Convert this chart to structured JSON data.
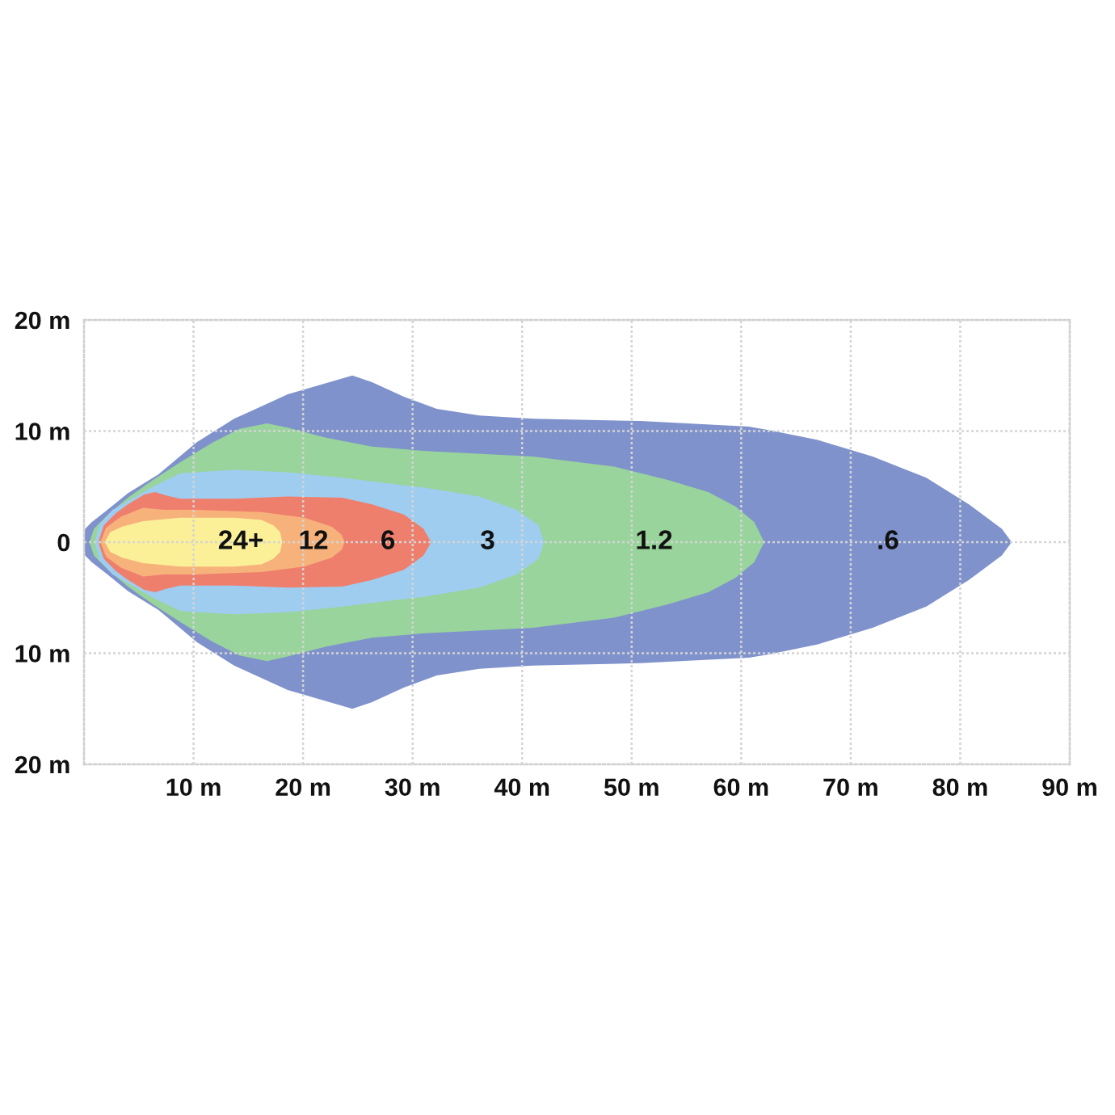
{
  "chart_data": {
    "type": "area",
    "xlim": [
      0,
      90
    ],
    "xticks": [
      {
        "value": 10,
        "label": "10 m"
      },
      {
        "value": 20,
        "label": "20 m"
      },
      {
        "value": 30,
        "label": "30 m"
      },
      {
        "value": 40,
        "label": "40 m"
      },
      {
        "value": 50,
        "label": "50 m"
      },
      {
        "value": 60,
        "label": "60 m"
      },
      {
        "value": 70,
        "label": "70 m"
      },
      {
        "value": 80,
        "label": "80 m"
      },
      {
        "value": 90,
        "label": "90 m"
      }
    ],
    "ylim": [
      -20,
      20
    ],
    "yticks": [
      {
        "value": 20,
        "label": "20 m"
      },
      {
        "value": 10,
        "label": "10 m"
      },
      0,
      {
        "value": -10,
        "label": "10 m"
      },
      {
        "value": -20,
        "label": "20 m"
      }
    ],
    "grid": true,
    "series": [
      {
        "name": ".6",
        "color": "#7f92cc",
        "x": [
          0,
          0.1,
          0.7,
          2.0,
          4.0,
          6.8,
          10.3,
          13.7,
          18.6,
          24.5,
          26.3,
          29.2,
          32.2,
          36.1,
          41,
          50.8,
          60.7,
          62.5,
          67,
          72,
          76.9,
          80.8,
          83.8,
          84.7
        ],
        "values": [
          0,
          1.2,
          1.8,
          2.8,
          4.4,
          6.1,
          9.0,
          11.1,
          13.3,
          15.0,
          14.4,
          13.1,
          12.0,
          11.4,
          11.1,
          10.9,
          10.4,
          10.1,
          9.2,
          7.7,
          5.8,
          3.4,
          1.2,
          0
        ]
      },
      {
        "color": "#7f92cc",
        "x": [
          0,
          0.1,
          0.7,
          2.0,
          4.0,
          6.8,
          10.3,
          13.7,
          18.6,
          24.5,
          26.3,
          29.2,
          32.2,
          36.1,
          41,
          50.8,
          60.7,
          62.5,
          67,
          72,
          76.9,
          80.8,
          83.8,
          84.7
        ],
        "values": [
          0,
          -1.2,
          -1.8,
          -2.8,
          -4.4,
          -6.1,
          -9.0,
          -11.1,
          -13.3,
          -15.0,
          -14.4,
          -13.1,
          -12.0,
          -11.4,
          -11.1,
          -10.9,
          -10.4,
          -10.1,
          -9.2,
          -7.7,
          -5.8,
          -3.4,
          -1.2,
          0
        ]
      },
      {
        "name": "1.2",
        "color": "#98d49b",
        "x": [
          0.5,
          0.9,
          2.0,
          4.0,
          6.3,
          8.8,
          11.8,
          14.2,
          16.7,
          18.6,
          22.1,
          26.3,
          31.2,
          41,
          48.4,
          53.3,
          57,
          59.5,
          61.2,
          62.1
        ],
        "values": [
          0,
          1.2,
          2.3,
          4.0,
          5.6,
          7.2,
          9.0,
          10.2,
          10.7,
          10.3,
          9.4,
          8.6,
          8.2,
          7.7,
          6.8,
          5.6,
          4.5,
          3.2,
          1.8,
          0
        ]
      },
      {
        "color": "#98d49b",
        "x": [
          0.5,
          0.9,
          2.0,
          4.0,
          6.3,
          8.8,
          11.8,
          14.2,
          16.7,
          18.6,
          22.1,
          26.3,
          31.2,
          41,
          48.4,
          53.3,
          57,
          59.5,
          61.2,
          62.1
        ],
        "values": [
          0,
          -1.2,
          -2.3,
          -4.0,
          -5.6,
          -7.2,
          -9.0,
          -10.2,
          -10.7,
          -10.3,
          -9.4,
          -8.6,
          -8.2,
          -7.7,
          -6.8,
          -5.6,
          -4.5,
          -3.2,
          -1.8,
          0
        ]
      },
      {
        "name": "3",
        "color": "#9fcdf0",
        "x": [
          1.0,
          1.4,
          2.6,
          4.0,
          6.3,
          8.8,
          13.7,
          18.6,
          23.6,
          28.5,
          31.2,
          36.1,
          39.5,
          41.5,
          42.0
        ],
        "values": [
          0,
          1.6,
          2.9,
          3.7,
          5.0,
          6.2,
          6.5,
          6.3,
          5.8,
          5.2,
          4.9,
          4.1,
          2.9,
          1.5,
          0
        ]
      },
      {
        "color": "#9fcdf0",
        "x": [
          1.0,
          1.4,
          2.6,
          4.0,
          6.3,
          8.8,
          13.7,
          18.6,
          23.6,
          28.5,
          31.2,
          36.1,
          39.5,
          41.5,
          42.0
        ],
        "values": [
          0,
          -1.6,
          -2.9,
          -3.7,
          -5.0,
          -6.2,
          -6.5,
          -6.3,
          -5.8,
          -5.2,
          -4.9,
          -4.1,
          -2.9,
          -1.5,
          0
        ]
      },
      {
        "name": "6",
        "color": "#ef7f6d",
        "x": [
          1.3,
          1.8,
          2.9,
          4.0,
          5.5,
          6.5,
          7.5,
          8.8,
          13.7,
          18.6,
          23.6,
          26.3,
          29.2,
          31.0,
          31.7
        ],
        "values": [
          0,
          1.5,
          2.6,
          3.4,
          4.3,
          4.5,
          4.2,
          3.9,
          3.9,
          4.1,
          4.0,
          3.4,
          2.5,
          1.2,
          0
        ]
      },
      {
        "color": "#ef7f6d",
        "x": [
          1.3,
          1.8,
          2.9,
          4.0,
          5.5,
          6.5,
          7.5,
          8.8,
          13.7,
          18.6,
          23.6,
          26.3,
          29.2,
          31.0,
          31.7
        ],
        "values": [
          0,
          -1.5,
          -2.6,
          -3.4,
          -4.3,
          -4.5,
          -4.2,
          -3.9,
          -3.9,
          -4.1,
          -4.0,
          -3.4,
          -2.5,
          -1.2,
          0
        ]
      },
      {
        "name": "12",
        "color": "#f7b27c",
        "x": [
          1.5,
          2.0,
          3.4,
          5.4,
          7.3,
          10.3,
          16.2,
          20.1,
          22.6,
          23.5,
          23.8
        ],
        "values": [
          0,
          1.3,
          2.3,
          3.1,
          2.9,
          2.9,
          2.7,
          2.2,
          1.4,
          0.7,
          0
        ]
      },
      {
        "color": "#f7b27c",
        "x": [
          1.5,
          2.0,
          3.4,
          5.4,
          7.3,
          10.3,
          16.2,
          20.1,
          22.6,
          23.5,
          23.8
        ],
        "values": [
          0,
          -1.3,
          -2.3,
          -3.1,
          -2.9,
          -2.9,
          -2.7,
          -2.2,
          -1.4,
          -0.7,
          0
        ]
      },
      {
        "name": "24+",
        "color": "#fbf098",
        "x": [
          1.9,
          2.4,
          3.5,
          5.4,
          8.8,
          13.7,
          16.2,
          17.3,
          17.9,
          18.1
        ],
        "values": [
          0,
          0.9,
          1.4,
          1.9,
          2.2,
          2.2,
          2.0,
          1.5,
          0.9,
          0
        ]
      },
      {
        "color": "#fbf098",
        "x": [
          1.9,
          2.4,
          3.5,
          5.4,
          8.8,
          13.7,
          16.2,
          17.3,
          17.9,
          18.1
        ],
        "values": [
          0,
          -0.9,
          -1.4,
          -1.9,
          -2.2,
          -2.2,
          -2.0,
          -1.5,
          -0.9,
          0
        ]
      }
    ]
  }
}
